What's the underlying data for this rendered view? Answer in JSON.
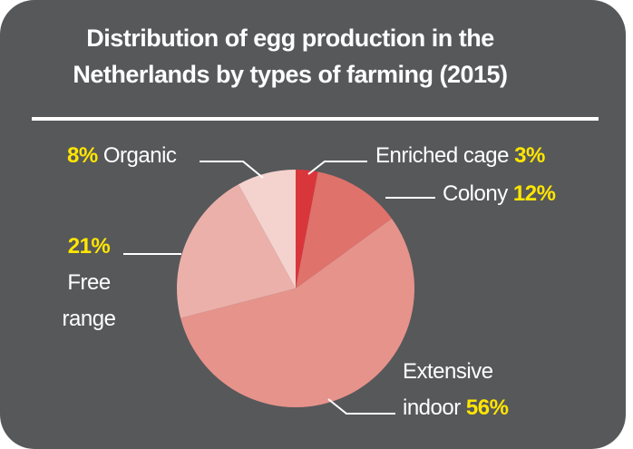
{
  "chart_data": {
    "type": "pie",
    "title": "Distribution of egg production in the Netherlands by types of farming (2015)",
    "categories": [
      "Enriched cage",
      "Colony",
      "Extensive indoor",
      "Free range",
      "Organic"
    ],
    "values": [
      3,
      12,
      56,
      21,
      8
    ],
    "value_labels": [
      "3%",
      "12%",
      "56%",
      "21%",
      "8%"
    ],
    "colors": [
      "#d9363c",
      "#df726b",
      "#e6938b",
      "#ebb0aa",
      "#f4d2ce"
    ]
  }
}
